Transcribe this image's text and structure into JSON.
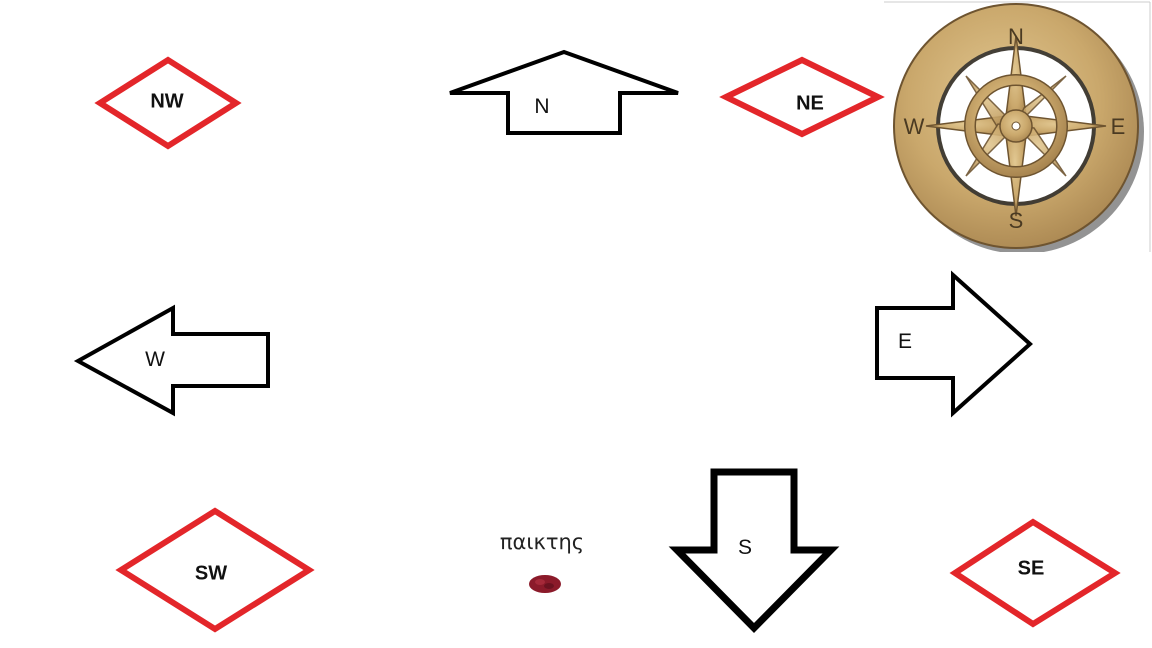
{
  "colors": {
    "arrow_stroke": "#000000",
    "diagonal_stroke": "#e3262a",
    "compass_wood": "#c9a96e",
    "player_token": "#8b1a2a"
  },
  "arrows": {
    "north": "N",
    "south": "S",
    "east": "E",
    "west": "W"
  },
  "diagonals": {
    "nw": "NW",
    "ne": "NE",
    "sw": "SW",
    "se": "SE"
  },
  "compass": {
    "icon": "compass-rose-icon",
    "n": "N",
    "s": "S",
    "e": "E",
    "w": "W"
  },
  "player": {
    "label": "παικτης",
    "icon": "player-token-icon"
  }
}
